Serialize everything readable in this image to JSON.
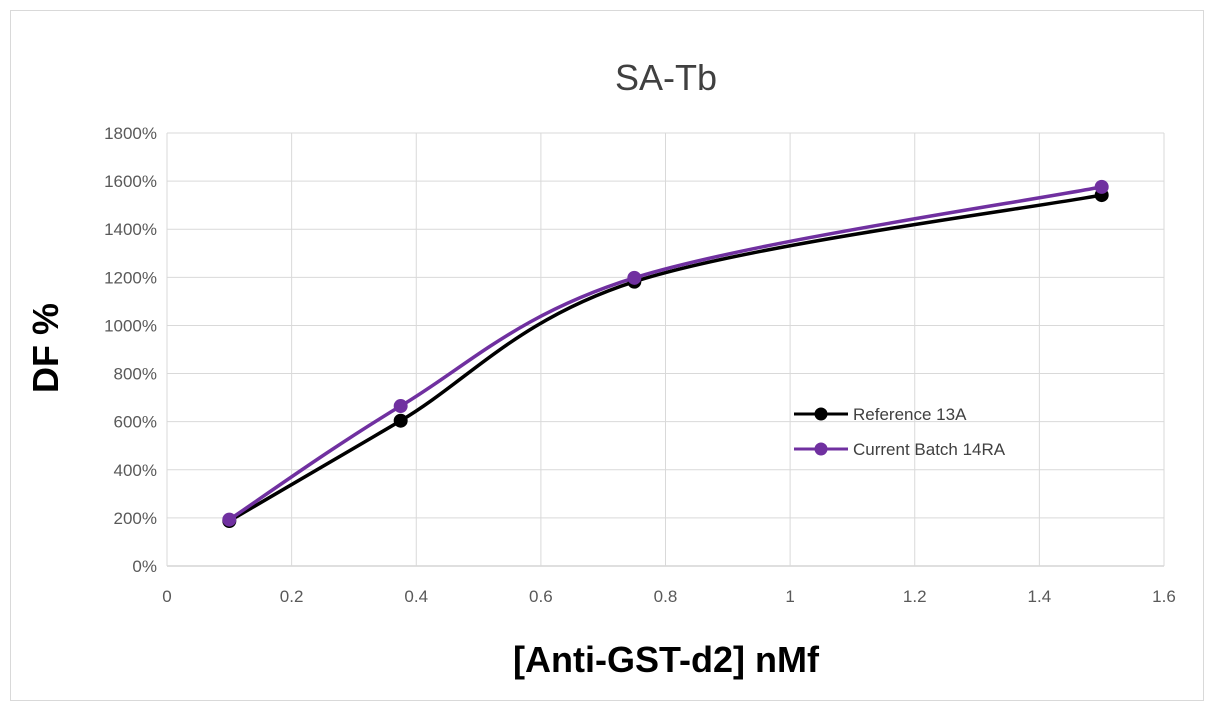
{
  "chart_data": {
    "type": "scatter",
    "title": "SA-Tb",
    "xlabel": "[Anti-GST-d2] nMf",
    "ylabel": "DF %",
    "xlim": [
      0,
      1.6
    ],
    "ylim": [
      0,
      1800
    ],
    "x_ticks": [
      "0",
      "0.2",
      "0.4",
      "0.6",
      "0.8",
      "1",
      "1.2",
      "1.4",
      "1.6"
    ],
    "y_ticks": [
      "0%",
      "200%",
      "400%",
      "600%",
      "800%",
      "1000%",
      "1200%",
      "1400%",
      "1600%",
      "1800%"
    ],
    "grid": true,
    "smooth_lines": true,
    "legend_position": "right-middle",
    "series": [
      {
        "name": "Reference 13A",
        "color": "#000000",
        "x": [
          0.1,
          0.375,
          0.75,
          1.5
        ],
        "y": [
          187,
          604,
          1182,
          1542
        ]
      },
      {
        "name": "Current Batch 14RA",
        "color": "#7030A0",
        "x": [
          0.1,
          0.375,
          0.75,
          1.5
        ],
        "y": [
          193,
          665,
          1198,
          1576
        ]
      }
    ]
  }
}
